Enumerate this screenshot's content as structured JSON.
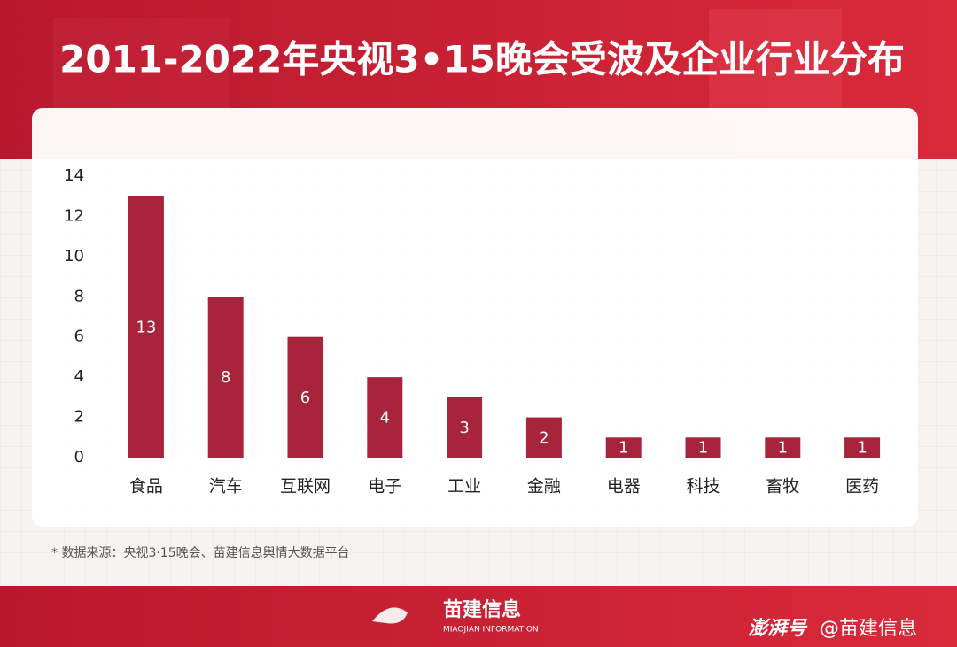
{
  "chart_data": {
    "type": "bar",
    "title": "2011-2022年央视3•15晚会受波及企业行业分布",
    "categories": [
      "食品",
      "汽车",
      "互联网",
      "电子",
      "工业",
      "金融",
      "电器",
      "科技",
      "畜牧",
      "医药"
    ],
    "values": [
      13,
      8,
      6,
      4,
      3,
      2,
      1,
      1,
      1,
      1
    ],
    "color": "#a8243a",
    "ylim": [
      0,
      14
    ],
    "yticks": [
      0,
      2,
      4,
      6,
      8,
      10,
      12,
      14
    ],
    "grid": false
  },
  "source": "* 数据来源：央视3·15晚会、苗建信息舆情大数据平台",
  "footer": {
    "brand": "苗建信息",
    "brand_en": "MIAOJIAN INFORMATION",
    "platform": "澎湃号",
    "account": "@苗建信息"
  }
}
